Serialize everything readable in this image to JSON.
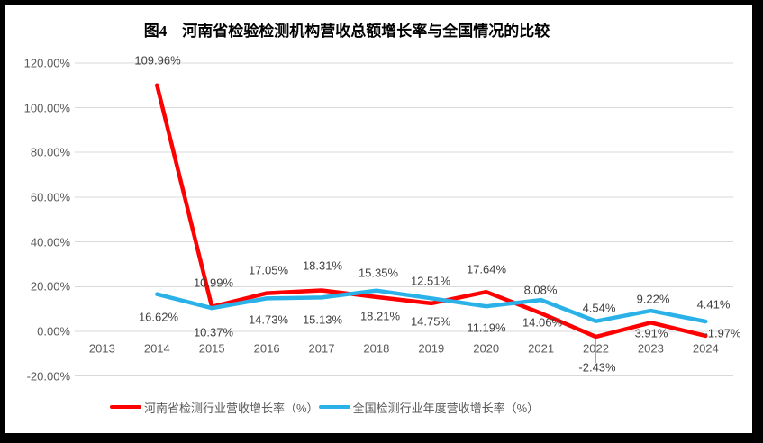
{
  "frame": {
    "outer_background": "#000000",
    "chart_background": "#ffffff"
  },
  "chart_data": {
    "type": "line",
    "title": "图4　河南省检验检测机构营收总额增长率与全国情况的比较",
    "categories": [
      "2013",
      "2014",
      "2015",
      "2016",
      "2017",
      "2018",
      "2019",
      "2020",
      "2021",
      "2022",
      "2023",
      "2024"
    ],
    "series": [
      {
        "name": "河南省检测行业营收增长率（%）",
        "color": "#FF0000",
        "values": [
          null,
          109.96,
          10.99,
          17.05,
          18.31,
          15.35,
          12.51,
          17.64,
          8.08,
          -2.43,
          3.91,
          -1.97
        ]
      },
      {
        "name": "全国检测行业年度营收增长率（%）",
        "color": "#2AB2E8",
        "values": [
          null,
          16.62,
          10.37,
          14.73,
          15.13,
          18.21,
          14.75,
          11.19,
          14.06,
          4.54,
          9.22,
          4.41
        ]
      }
    ],
    "y_axis": {
      "min": -20,
      "max": 120,
      "step": 20,
      "tick_labels": [
        "120.00%",
        "100.00%",
        "80.00%",
        "60.00%",
        "40.00%",
        "20.00%",
        "0.00%",
        "-20.00%"
      ]
    },
    "x_axis": {
      "tick_labels": [
        "2013",
        "2014",
        "2015",
        "2016",
        "2017",
        "2018",
        "2019",
        "2020",
        "2021",
        "2022",
        "2023",
        "2024"
      ]
    },
    "grid": true,
    "data_labels": true,
    "legend_position": "bottom",
    "colors": {
      "gridline": "#D9D9D9",
      "axis_text": "#595959",
      "label_text": "#3F3F3F",
      "leader_line": "#A6A6A6"
    }
  }
}
